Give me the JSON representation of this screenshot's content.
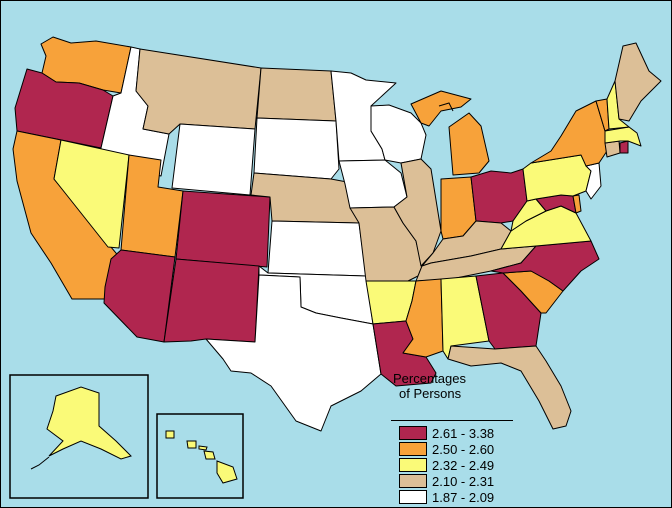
{
  "legend": {
    "title_line1": "Percentages",
    "title_line2": "of Persons",
    "items": [
      {
        "label": "2.61 - 3.38",
        "color": "#b0264f"
      },
      {
        "label": "2.50 - 2.60",
        "color": "#f7a23a"
      },
      {
        "label": "2.32 - 2.49",
        "color": "#fafa78"
      },
      {
        "label": "2.10 - 2.31",
        "color": "#dcbf97"
      },
      {
        "label": "1.87 - 2.09",
        "color": "#ffffff"
      }
    ]
  },
  "colors": {
    "water": "#a9dde9",
    "border": "#000000"
  }
}
